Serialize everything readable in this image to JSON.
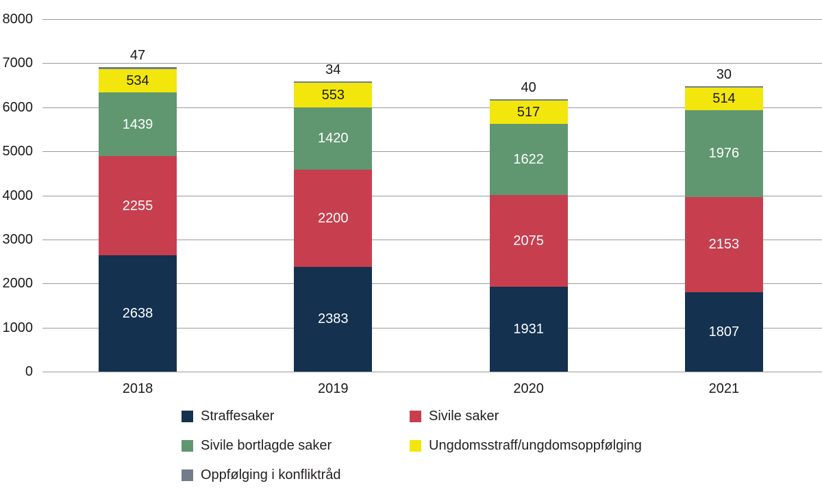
{
  "chart_data": {
    "type": "bar",
    "stacked": true,
    "title": "",
    "xlabel": "",
    "ylabel": "",
    "categories": [
      "2018",
      "2019",
      "2020",
      "2021"
    ],
    "series": [
      {
        "name": "Straffesaker",
        "color": "#14314f",
        "text_color": "#ffffff",
        "values": [
          2638,
          2383,
          1931,
          1807
        ]
      },
      {
        "name": "Sivile saker",
        "color": "#c73f4e",
        "text_color": "#ffffff",
        "values": [
          2255,
          2200,
          2075,
          2153
        ]
      },
      {
        "name": "Sivile bortlagde saker",
        "color": "#609770",
        "text_color": "#ffffff",
        "values": [
          1439,
          1420,
          1622,
          1976
        ]
      },
      {
        "name": "Ungdomsstraff/ungdomsoppfølging",
        "color": "#f2e60d",
        "text_color": "#1a1a1a",
        "values": [
          534,
          553,
          517,
          514
        ]
      },
      {
        "name": "Oppfølging i konfliktråd",
        "color": "#717e89",
        "text_color": "#1a1a1a",
        "values": [
          47,
          34,
          40,
          30
        ],
        "label_above_bar": true
      }
    ],
    "totals": [
      6913,
      6590,
      6185,
      6480
    ],
    "ylim": [
      0,
      8000
    ],
    "yticks": [
      0,
      1000,
      2000,
      3000,
      4000,
      5000,
      6000,
      7000,
      8000
    ],
    "grid": true,
    "legend_position": "bottom",
    "legend_columns": 2
  },
  "colors": {
    "background": "#ffffff",
    "gridline": "#9a9a9a",
    "axis_text": "#1a1a1a",
    "legend_text": "#231f20"
  }
}
